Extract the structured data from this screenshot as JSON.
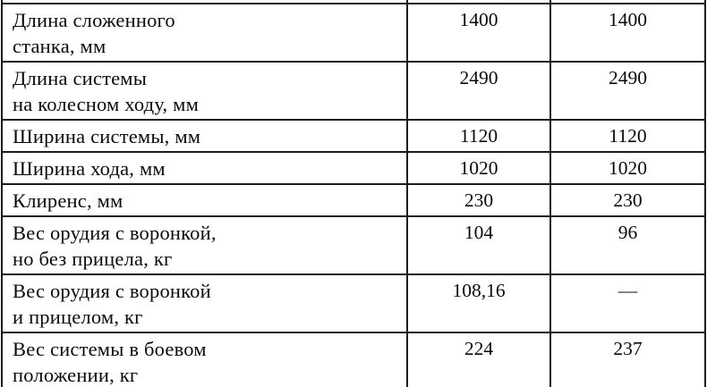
{
  "table": {
    "unit_columns_note": "two value columns, no visible headers (table continued from previous page)",
    "rows": [
      {
        "label": "Длина сложенного\nстанка, мм",
        "v1": "1400",
        "v2": "1400"
      },
      {
        "label": "Длина системы\nна колесном ходу,  мм",
        "v1": "2490",
        "v2": "2490"
      },
      {
        "label": "Ширина системы, мм",
        "v1": "1120",
        "v2": "1120"
      },
      {
        "label": "Ширина хода, мм",
        "v1": "1020",
        "v2": "1020"
      },
      {
        "label": "Клиренс, мм",
        "v1": "230",
        "v2": "230"
      },
      {
        "label": "Вес орудия с воронкой,\nно без прицела, кг",
        "v1": "104",
        "v2": "96"
      },
      {
        "label": "Вес орудия с воронкой\nи прицелом, кг",
        "v1": "108,16",
        "v2": "—"
      },
      {
        "label": "Вес системы в боевом\nположении, кг",
        "v1": "224",
        "v2": "237"
      }
    ],
    "colors": {
      "line": "#1c1c1c",
      "text": "#0b0b0b",
      "background": "#ffffff"
    }
  }
}
